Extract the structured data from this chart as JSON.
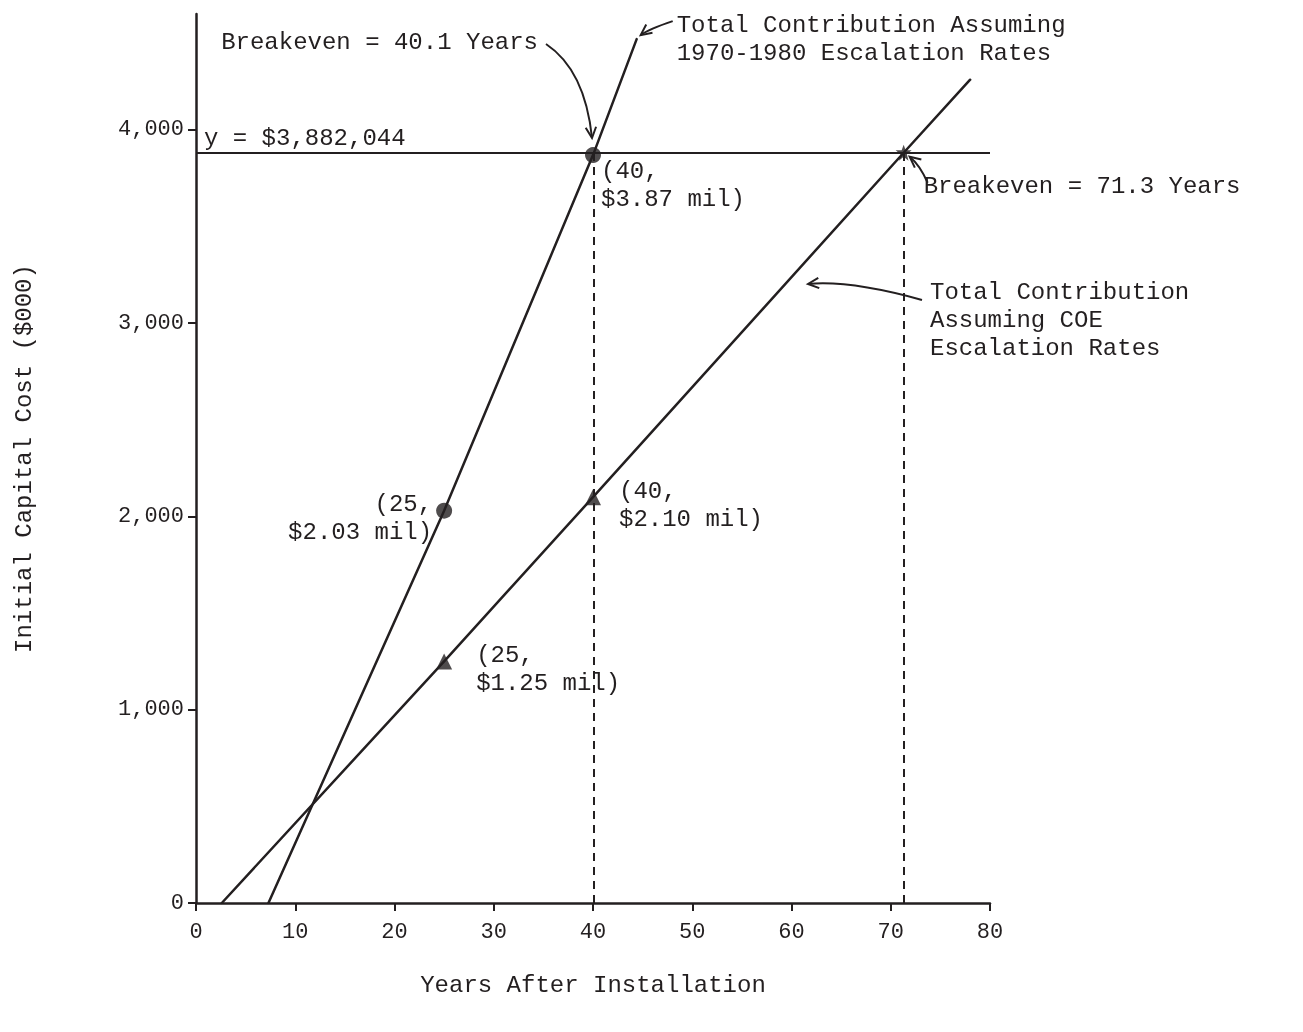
{
  "chart_data": {
    "type": "line",
    "xlabel": "Years After Installation",
    "ylabel": "Initial Capital Cost ($000)",
    "xlim": [
      0,
      80
    ],
    "xticks": [
      0,
      10,
      20,
      30,
      40,
      50,
      60,
      70,
      80
    ],
    "ylim": [
      0,
      4600
    ],
    "yticks": [
      0,
      {
        "value": 1000,
        "label": "1,000"
      },
      {
        "value": 2000,
        "label": "2,000"
      },
      {
        "value": 3000,
        "label": "3,000"
      },
      {
        "value": 4000,
        "label": "4,000"
      }
    ],
    "grid": false,
    "line_style": "solid",
    "series": [
      {
        "color": "#231f20",
        "marker": "none",
        "x": [
          7.3,
          25,
          40,
          44.4
        ],
        "values": [
          0,
          2030,
          3870,
          4470
        ]
      },
      {
        "color": "#231f20",
        "marker": "none",
        "x": [
          2.6,
          25,
          40,
          71.3,
          78
        ],
        "values": [
          0,
          1250,
          2100,
          3882,
          4260
        ]
      },
      {
        "type": "scatter",
        "color": "#231f20",
        "marker": "circle",
        "x": [
          25,
          40
        ],
        "values": [
          2030,
          3870
        ]
      },
      {
        "type": "scatter",
        "color": "#231f20",
        "marker": "triangle",
        "x": [
          25,
          40
        ],
        "values": [
          1250,
          2100
        ]
      },
      {
        "type": "scatter",
        "color": "#231f20",
        "marker": "star",
        "x": [
          71.3
        ],
        "values": [
          3882
        ]
      }
    ],
    "ref_lines": [
      {
        "axis": "y",
        "value": 3882.044,
        "label": "y = $3,882,044",
        "line_style": "solid"
      },
      {
        "axis": "x",
        "value": 40.1,
        "label": null,
        "line_style": "dashed"
      },
      {
        "axis": "x",
        "value": 71.3,
        "label": null,
        "line_style": "dashed"
      }
    ],
    "annotations": [
      "Breakeven = 40.1 Years",
      {
        "text": "Total Contribution Assuming\n1970-1980 Escalation Rates",
        "x": 44,
        "y": 4470
      },
      {
        "text": "(40,\n$3.87 mil)",
        "x": 40,
        "y": 3870
      },
      {
        "text": "Breakeven = 71.3 Years",
        "x": 71.3,
        "y": 3882
      },
      "Total Contribution\nAssuming COE\nEscalation Rates",
      {
        "text": "(25,\n$2.03 mil)",
        "x": 25,
        "y": 2030
      },
      {
        "text": "(40,\n$2.10 mil)",
        "x": 40,
        "y": 2100
      },
      {
        "text": "(25,\n$1.25 mil)",
        "x": 25,
        "y": 1250
      }
    ]
  }
}
